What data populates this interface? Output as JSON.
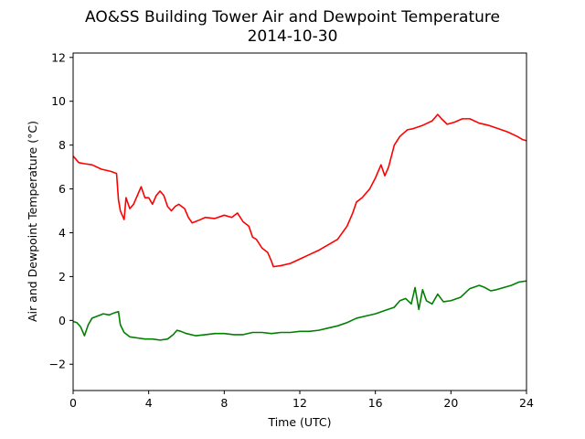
{
  "chart_data": {
    "type": "line",
    "title": "AO&SS Building Tower Air and Dewpoint Temperature",
    "subtitle": "2014-10-30",
    "xlabel": "Time (UTC)",
    "ylabel": "Air and Dewpoint Temperature (°C)",
    "xlim": [
      0,
      24
    ],
    "ylim": [
      -3.2,
      12.2
    ],
    "xticks": [
      0,
      4,
      8,
      12,
      16,
      20,
      24
    ],
    "yticks": [
      -2,
      0,
      2,
      4,
      6,
      8,
      10,
      12
    ],
    "grid": false,
    "series": [
      {
        "color": "#ff0000",
        "x": [
          0,
          0.3,
          0.6,
          1.0,
          1.5,
          2.0,
          2.3,
          2.4,
          2.5,
          2.7,
          2.8,
          3.0,
          3.2,
          3.4,
          3.6,
          3.8,
          4.0,
          4.2,
          4.4,
          4.6,
          4.8,
          5.0,
          5.2,
          5.4,
          5.6,
          5.9,
          6.1,
          6.3,
          6.6,
          7.0,
          7.5,
          8.0,
          8.4,
          8.7,
          9.0,
          9.3,
          9.5,
          9.7,
          10.0,
          10.3,
          10.5,
          10.6,
          11.0,
          11.5,
          12.0,
          12.5,
          13.0,
          13.5,
          14.0,
          14.5,
          14.8,
          15.0,
          15.3,
          15.7,
          16.0,
          16.3,
          16.5,
          16.7,
          17.0,
          17.3,
          17.7,
          18.0,
          18.5,
          19.0,
          19.3,
          19.5,
          19.8,
          20.2,
          20.6,
          21.0,
          21.5,
          22.0,
          22.5,
          23.0,
          23.5,
          23.8,
          24.0
        ],
        "y": [
          7.5,
          7.2,
          7.15,
          7.1,
          6.9,
          6.8,
          6.7,
          5.5,
          5.0,
          4.6,
          5.6,
          5.1,
          5.3,
          5.7,
          6.1,
          5.6,
          5.6,
          5.3,
          5.7,
          5.9,
          5.7,
          5.2,
          5.0,
          5.2,
          5.3,
          5.1,
          4.7,
          4.45,
          4.55,
          4.7,
          4.65,
          4.8,
          4.7,
          4.9,
          4.5,
          4.3,
          3.8,
          3.7,
          3.3,
          3.1,
          2.7,
          2.45,
          2.5,
          2.6,
          2.8,
          3.0,
          3.2,
          3.45,
          3.7,
          4.3,
          4.9,
          5.4,
          5.6,
          6.0,
          6.5,
          7.1,
          6.6,
          7.0,
          8.0,
          8.4,
          8.7,
          8.75,
          8.9,
          9.1,
          9.4,
          9.2,
          8.95,
          9.05,
          9.2,
          9.2,
          9.0,
          8.9,
          8.75,
          8.6,
          8.4,
          8.25,
          8.2
        ]
      },
      {
        "color": "#008000",
        "x": [
          0,
          0.2,
          0.4,
          0.6,
          0.8,
          1.0,
          1.3,
          1.6,
          1.9,
          2.2,
          2.4,
          2.5,
          2.7,
          3.0,
          3.4,
          3.8,
          4.2,
          4.6,
          5.0,
          5.3,
          5.5,
          5.7,
          6.0,
          6.5,
          7.0,
          7.5,
          8.0,
          8.5,
          9.0,
          9.5,
          10.0,
          10.5,
          11.0,
          11.5,
          12.0,
          12.5,
          13.0,
          13.5,
          14.0,
          14.5,
          15.0,
          15.5,
          16.0,
          16.5,
          17.0,
          17.3,
          17.6,
          17.9,
          18.1,
          18.3,
          18.5,
          18.7,
          19.0,
          19.3,
          19.6,
          20.0,
          20.5,
          21.0,
          21.5,
          21.8,
          22.1,
          22.4,
          22.8,
          23.2,
          23.6,
          24.0
        ],
        "y": [
          -0.05,
          -0.1,
          -0.3,
          -0.7,
          -0.2,
          0.1,
          0.2,
          0.3,
          0.25,
          0.35,
          0.4,
          -0.2,
          -0.55,
          -0.75,
          -0.8,
          -0.85,
          -0.85,
          -0.9,
          -0.85,
          -0.65,
          -0.45,
          -0.5,
          -0.6,
          -0.7,
          -0.65,
          -0.6,
          -0.6,
          -0.65,
          -0.65,
          -0.55,
          -0.55,
          -0.6,
          -0.55,
          -0.55,
          -0.5,
          -0.5,
          -0.45,
          -0.35,
          -0.25,
          -0.1,
          0.1,
          0.2,
          0.3,
          0.45,
          0.6,
          0.9,
          1.0,
          0.75,
          1.5,
          0.5,
          1.4,
          0.9,
          0.75,
          1.2,
          0.85,
          0.9,
          1.05,
          1.45,
          1.6,
          1.5,
          1.35,
          1.4,
          1.5,
          1.6,
          1.75,
          1.8
        ]
      }
    ]
  }
}
